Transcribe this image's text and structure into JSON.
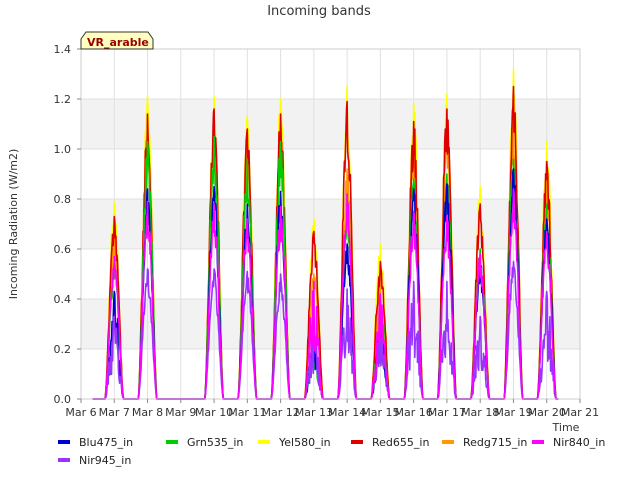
{
  "chart_data": {
    "type": "line",
    "title": "Incoming bands",
    "ylabel": "Incoming Radiation (W/m2)",
    "xlabel": "Time",
    "badge": "VR_arable",
    "ylim": [
      0,
      1.4
    ],
    "yticks": [
      "0.0",
      "0.2",
      "0.4",
      "0.6",
      "0.8",
      "1.0",
      "1.2",
      "1.4"
    ],
    "xlim": [
      6,
      21
    ],
    "xticks": [
      "Mar 6",
      "Mar 7",
      "Mar 8",
      "Mar 9",
      "Mar 10",
      "Mar 11",
      "Mar 12",
      "Mar 13",
      "Mar 14",
      "Mar 15",
      "Mar 16",
      "Mar 17",
      "Mar 18",
      "Mar 19",
      "Mar 20",
      "Mar 21"
    ],
    "grid": true,
    "legend_position": "bottom",
    "days": [
      7,
      8,
      10,
      11,
      12,
      13,
      14,
      15,
      16,
      17,
      18,
      19,
      20
    ],
    "series": [
      {
        "name": "Blu475_in",
        "color": "#0000cc",
        "peaks": [
          0.43,
          0.84,
          0.85,
          0.78,
          0.83,
          0.24,
          0.62,
          0.33,
          0.84,
          0.86,
          0.55,
          0.92,
          0.72
        ]
      },
      {
        "name": "Grn535_in",
        "color": "#00cc00",
        "peaks": [
          0.55,
          1.03,
          1.05,
          0.96,
          1.03,
          0.28,
          0.78,
          0.4,
          0.88,
          0.9,
          0.6,
          0.96,
          0.78
        ]
      },
      {
        "name": "Yel580_in",
        "color": "#ffff00",
        "peaks": [
          0.79,
          1.21,
          1.21,
          1.13,
          1.2,
          0.72,
          1.25,
          0.62,
          1.18,
          1.22,
          0.85,
          1.32,
          1.03
        ]
      },
      {
        "name": "Red655_in",
        "color": "#dd0000",
        "peaks": [
          0.73,
          1.14,
          1.16,
          1.08,
          1.14,
          0.67,
          1.19,
          0.55,
          1.11,
          1.16,
          0.78,
          1.25,
          0.95
        ]
      },
      {
        "name": "Redg715_in",
        "color": "#ff9900",
        "peaks": [
          0.65,
          1.1,
          1.12,
          1.02,
          1.1,
          0.5,
          0.92,
          0.48,
          1.05,
          1.08,
          0.6,
          1.15,
          0.88
        ]
      },
      {
        "name": "Nir840_in",
        "color": "#ff00ff",
        "peaks": [
          0.57,
          0.79,
          0.78,
          0.72,
          0.77,
          0.47,
          0.82,
          0.42,
          0.75,
          0.73,
          0.58,
          0.84,
          0.67
        ]
      },
      {
        "name": "Nir945_in",
        "color": "#9933ff",
        "peaks": [
          0.33,
          0.52,
          0.52,
          0.51,
          0.5,
          0.28,
          0.44,
          0.3,
          0.47,
          0.47,
          0.33,
          0.55,
          0.43
        ]
      }
    ]
  }
}
